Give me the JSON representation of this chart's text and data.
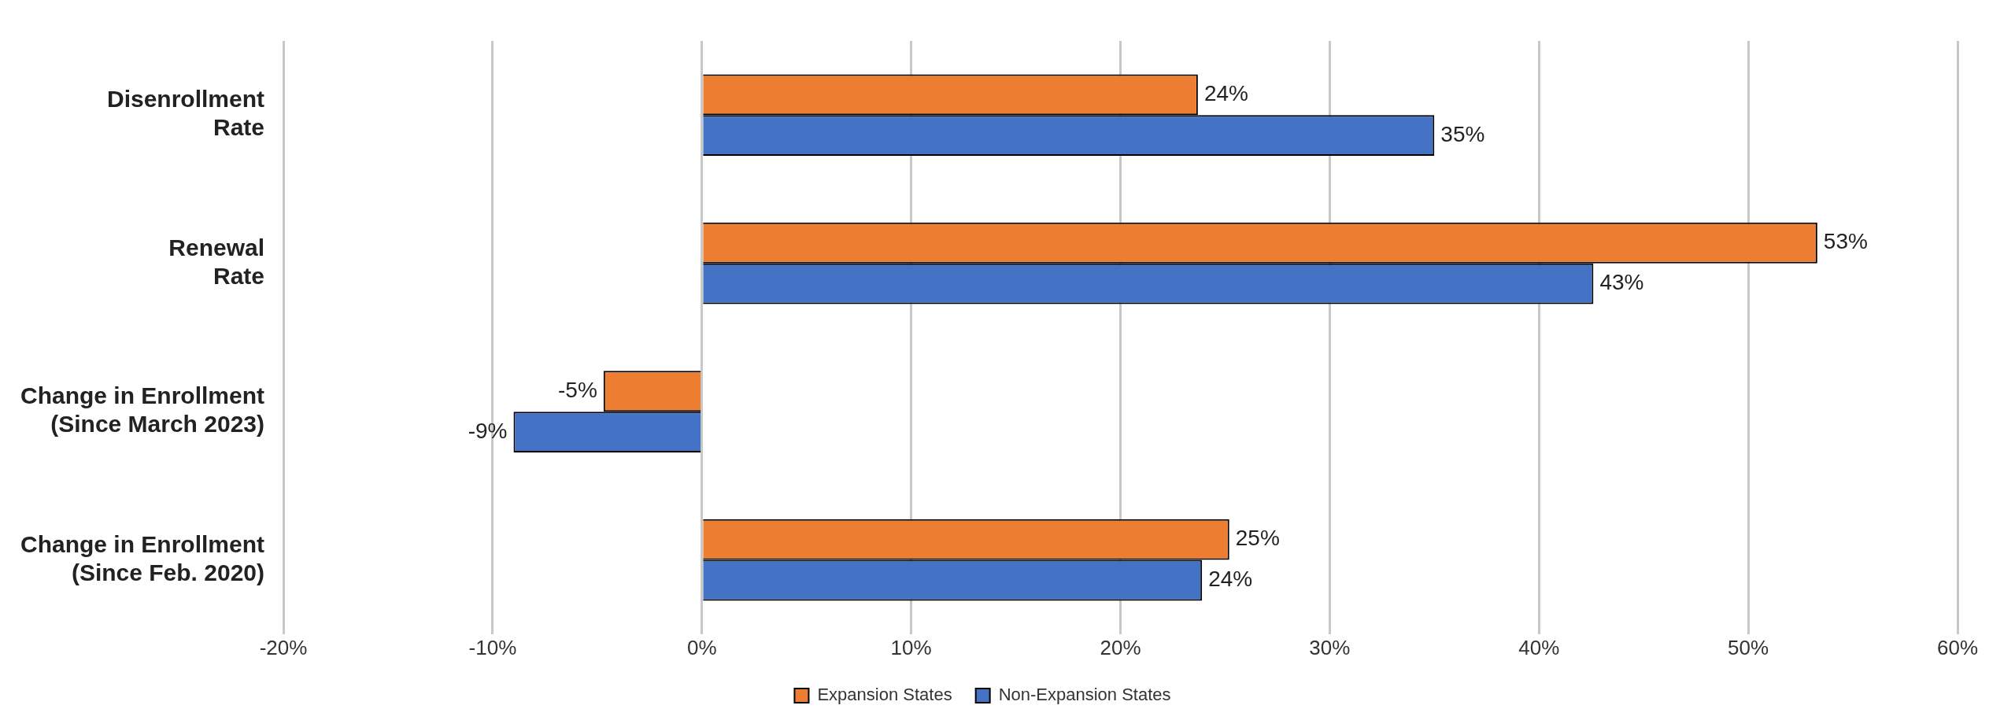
{
  "chart_data": {
    "type": "bar",
    "orientation": "horizontal",
    "categories": [
      "Disenrollment\nRate",
      "Renewal\nRate",
      "Change in Enrollment\n(Since March 2023)",
      "Change in Enrollment\n(Since Feb. 2020)"
    ],
    "series": [
      {
        "name": "Expansion States",
        "color": "#ed7d31",
        "values": [
          23.7,
          53.3,
          -4.7,
          25.2
        ],
        "value_labels": [
          "24%",
          "53%",
          "-5%",
          "25%"
        ]
      },
      {
        "name": "Non-Expansion States",
        "color": "#4472c4",
        "values": [
          35,
          42.6,
          -9,
          23.9
        ],
        "value_labels": [
          "35%",
          "43%",
          "-9%",
          "24%"
        ]
      }
    ],
    "xlim": [
      -20,
      60
    ],
    "xticks": [
      {
        "value": -20,
        "label": "-20%"
      },
      {
        "value": -10,
        "label": "-10%"
      },
      {
        "value": 0,
        "label": "0%"
      },
      {
        "value": 10,
        "label": "10%"
      },
      {
        "value": 20,
        "label": "20%"
      },
      {
        "value": 30,
        "label": "30%"
      },
      {
        "value": 40,
        "label": "40%"
      },
      {
        "value": 50,
        "label": "50%"
      },
      {
        "value": 60,
        "label": "60%"
      }
    ],
    "grid": "x",
    "legend": "bottom"
  }
}
